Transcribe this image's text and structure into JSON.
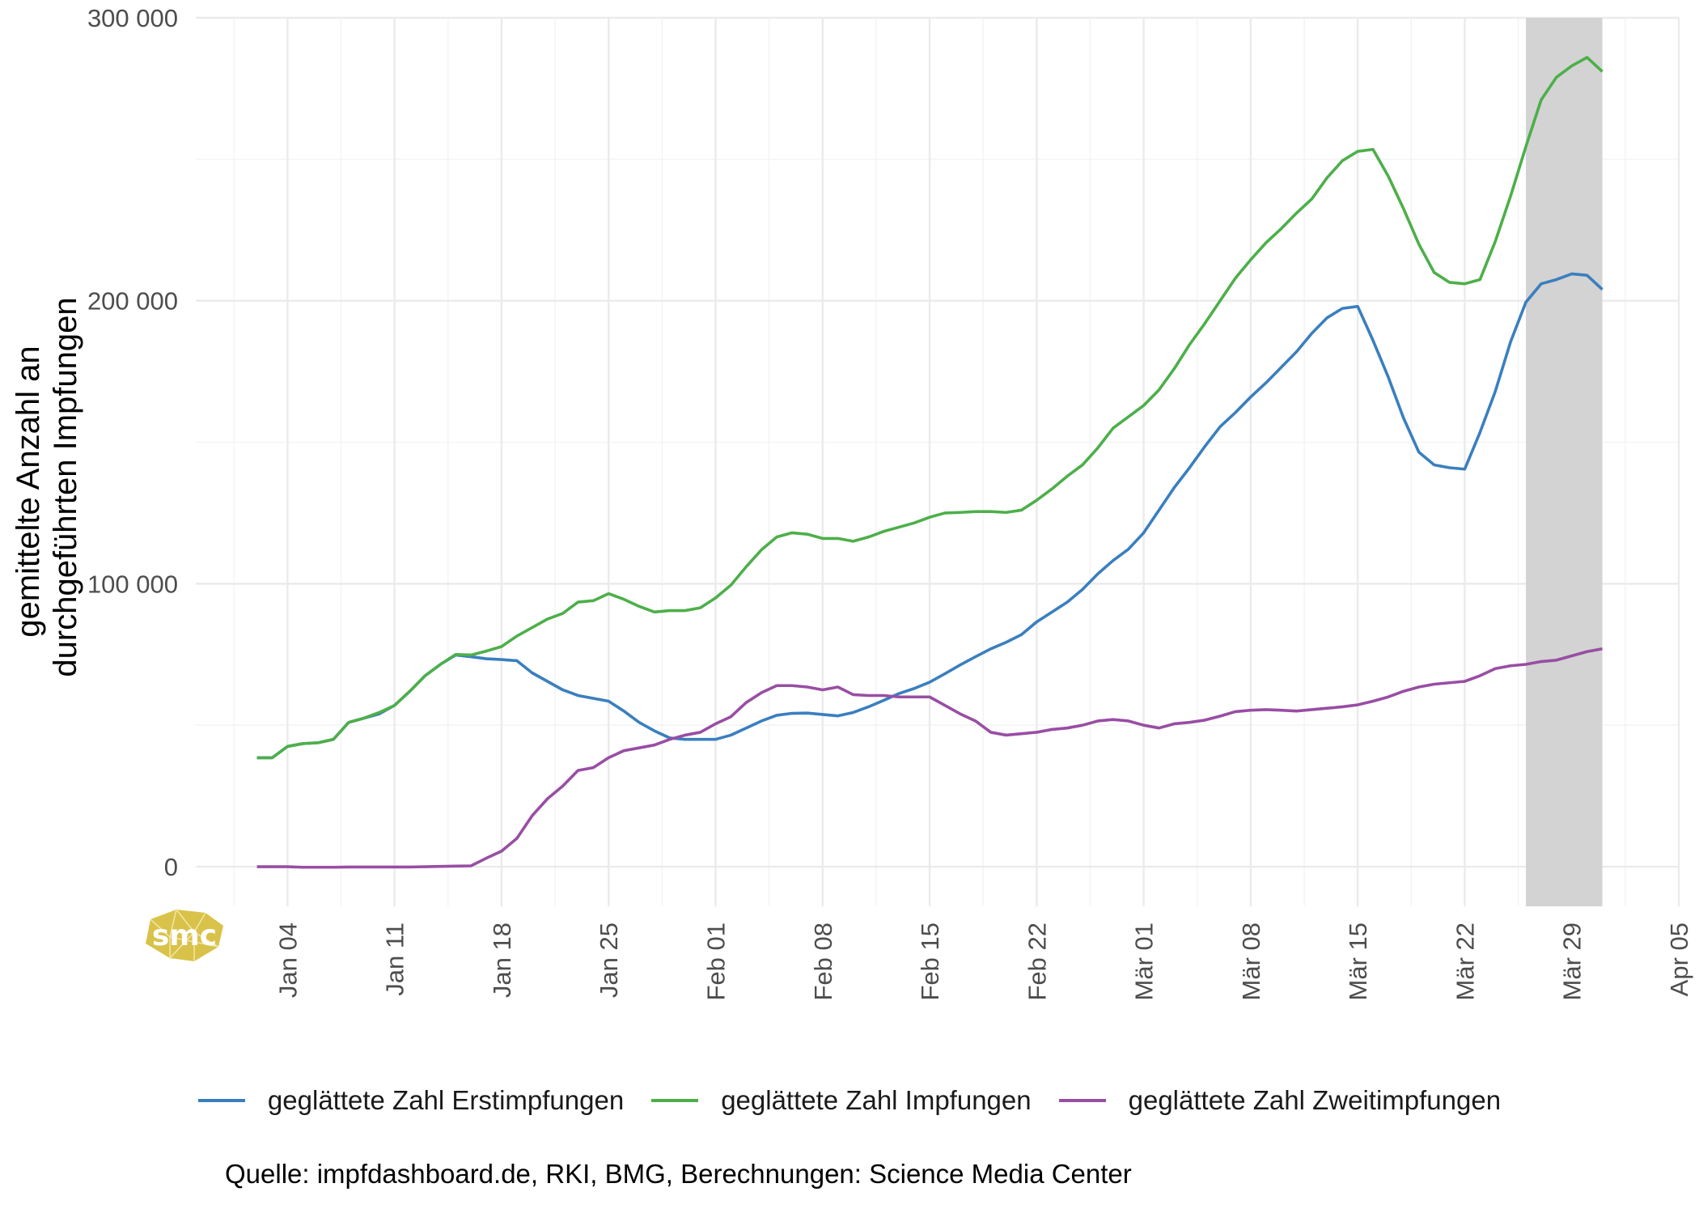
{
  "chart_data": {
    "type": "line",
    "ylabel": "gemittelte Anzahl an durchgeführten Impfungen",
    "ylabel_lines": [
      "gemittelte Anzahl an",
      "durchgeführten Impfungen"
    ],
    "xlabel": "",
    "x_unit": "day",
    "x_start": "2020-12-29",
    "x_end": "2021-04-05",
    "x_ticks": [
      {
        "label": "Jan 04",
        "date": "2021-01-04"
      },
      {
        "label": "Jan 11",
        "date": "2021-01-11"
      },
      {
        "label": "Jan 18",
        "date": "2021-01-18"
      },
      {
        "label": "Jan 25",
        "date": "2021-01-25"
      },
      {
        "label": "Feb 01",
        "date": "2021-02-01"
      },
      {
        "label": "Feb 08",
        "date": "2021-02-08"
      },
      {
        "label": "Feb 15",
        "date": "2021-02-15"
      },
      {
        "label": "Feb 22",
        "date": "2021-02-22"
      },
      {
        "label": "Mär 01",
        "date": "2021-03-01"
      },
      {
        "label": "Mär 08",
        "date": "2021-03-08"
      },
      {
        "label": "Mär 15",
        "date": "2021-03-15"
      },
      {
        "label": "Mär 22",
        "date": "2021-03-22"
      },
      {
        "label": "Mär 29",
        "date": "2021-03-29"
      },
      {
        "label": "Apr 05",
        "date": "2021-04-05"
      }
    ],
    "y_ticks": [
      {
        "label": "0",
        "value": 0
      },
      {
        "label": "100 000",
        "value": 100000
      },
      {
        "label": "200 000",
        "value": 200000
      },
      {
        "label": "300 000",
        "value": 300000
      }
    ],
    "ylim": [
      -14000,
      300000
    ],
    "grid": true,
    "legend_position": "bottom",
    "highlight": {
      "from": "2021-03-26",
      "to": "2021-03-31",
      "color": "#d3d3d3"
    },
    "x": [
      "2021-01-02",
      "2021-01-03",
      "2021-01-04",
      "2021-01-05",
      "2021-01-06",
      "2021-01-07",
      "2021-01-08",
      "2021-01-09",
      "2021-01-10",
      "2021-01-11",
      "2021-01-12",
      "2021-01-13",
      "2021-01-14",
      "2021-01-15",
      "2021-01-16",
      "2021-01-17",
      "2021-01-18",
      "2021-01-19",
      "2021-01-20",
      "2021-01-21",
      "2021-01-22",
      "2021-01-23",
      "2021-01-24",
      "2021-01-25",
      "2021-01-26",
      "2021-01-27",
      "2021-01-28",
      "2021-01-29",
      "2021-01-30",
      "2021-01-31",
      "2021-02-01",
      "2021-02-02",
      "2021-02-03",
      "2021-02-04",
      "2021-02-05",
      "2021-02-06",
      "2021-02-07",
      "2021-02-08",
      "2021-02-09",
      "2021-02-10",
      "2021-02-11",
      "2021-02-12",
      "2021-02-13",
      "2021-02-14",
      "2021-02-15",
      "2021-02-16",
      "2021-02-17",
      "2021-02-18",
      "2021-02-19",
      "2021-02-20",
      "2021-02-21",
      "2021-02-22",
      "2021-02-23",
      "2021-02-24",
      "2021-02-25",
      "2021-02-26",
      "2021-02-27",
      "2021-02-28",
      "2021-03-01",
      "2021-03-02",
      "2021-03-03",
      "2021-03-04",
      "2021-03-05",
      "2021-03-06",
      "2021-03-07",
      "2021-03-08",
      "2021-03-09",
      "2021-03-10",
      "2021-03-11",
      "2021-03-12",
      "2021-03-13",
      "2021-03-14",
      "2021-03-15",
      "2021-03-16",
      "2021-03-17",
      "2021-03-18",
      "2021-03-19",
      "2021-03-20",
      "2021-03-21",
      "2021-03-22",
      "2021-03-23",
      "2021-03-24",
      "2021-03-25",
      "2021-03-26",
      "2021-03-27",
      "2021-03-28",
      "2021-03-29",
      "2021-03-30",
      "2021-03-31"
    ],
    "series": [
      {
        "name": "geglättete Zahl Erstimpfungen",
        "color": "#3a7fbf",
        "values": [
          38500,
          38500,
          42500,
          43500,
          43800,
          45000,
          51000,
          52500,
          54000,
          57000,
          62000,
          67500,
          71500,
          74800,
          74200,
          73500,
          73200,
          72800,
          68500,
          65500,
          62500,
          60500,
          59500,
          58500,
          55000,
          51000,
          48000,
          45500,
          45000,
          45000,
          45000,
          46500,
          49000,
          51500,
          53500,
          54200,
          54300,
          53800,
          53300,
          54500,
          56500,
          58800,
          61200,
          63000,
          65200,
          68200,
          71300,
          74200,
          77000,
          79300,
          82000,
          86500,
          90000,
          93500,
          98000,
          103500,
          108200,
          112200,
          118000,
          126000,
          134000,
          141000,
          148500,
          155500,
          160500,
          166000,
          171000,
          176500,
          182000,
          188500,
          194000,
          197300,
          198000,
          186000,
          173000,
          158500,
          146500,
          142000,
          141000,
          140500,
          153500,
          168000,
          185500,
          199500,
          206000,
          207500,
          209500,
          209000,
          204000
        ]
      },
      {
        "name": "geglättete Zahl Impfungen",
        "color": "#4daf4a",
        "values": [
          38500,
          38500,
          42500,
          43500,
          43800,
          45000,
          51000,
          52500,
          54500,
          57000,
          62000,
          67500,
          71500,
          75000,
          74800,
          76200,
          77800,
          81500,
          84500,
          87500,
          89500,
          93500,
          94000,
          96500,
          94500,
          92000,
          90000,
          90500,
          90500,
          91500,
          95000,
          99500,
          106000,
          112000,
          116500,
          118000,
          117500,
          116000,
          116000,
          115000,
          116500,
          118500,
          120000,
          121500,
          123500,
          125000,
          125200,
          125500,
          125500,
          125200,
          126000,
          129500,
          133500,
          138000,
          142000,
          148000,
          155000,
          159000,
          163000,
          168500,
          176000,
          184500,
          192000,
          200000,
          208000,
          214500,
          220500,
          225500,
          231000,
          236000,
          243500,
          249500,
          252800,
          253500,
          244000,
          232500,
          220000,
          210000,
          206500,
          206000,
          207500,
          221000,
          237000,
          254500,
          271000,
          279000,
          283000,
          286000,
          281000
        ]
      },
      {
        "name": "geglättete Zahl Zweitimpfungen",
        "color": "#984ea3",
        "values": [
          0,
          0,
          0,
          -200,
          -200,
          -200,
          -100,
          -100,
          -100,
          -100,
          -100,
          0,
          100,
          200,
          300,
          3000,
          5500,
          10000,
          18000,
          24000,
          28500,
          34000,
          35000,
          38500,
          41000,
          42000,
          43000,
          45000,
          46500,
          47500,
          50500,
          53000,
          58000,
          61500,
          64000,
          64000,
          63500,
          62500,
          63500,
          60800,
          60500,
          60500,
          60000,
          60000,
          60000,
          57000,
          54000,
          51500,
          47500,
          46500,
          47000,
          47500,
          48500,
          49000,
          50000,
          51500,
          52000,
          51500,
          50000,
          49000,
          50500,
          51000,
          51800,
          53200,
          54800,
          55300,
          55500,
          55300,
          55000,
          55500,
          56000,
          56500,
          57200,
          58500,
          60000,
          62000,
          63500,
          64500,
          65000,
          65500,
          67500,
          70000,
          71000,
          71500,
          72500,
          73000,
          74500,
          76000,
          77000
        ]
      }
    ]
  },
  "caption": "Quelle: impfdashboard.de, RKI, BMG, Berechnungen: Science Media Center",
  "logo": {
    "text": "smc",
    "color": "#d9c24a"
  }
}
